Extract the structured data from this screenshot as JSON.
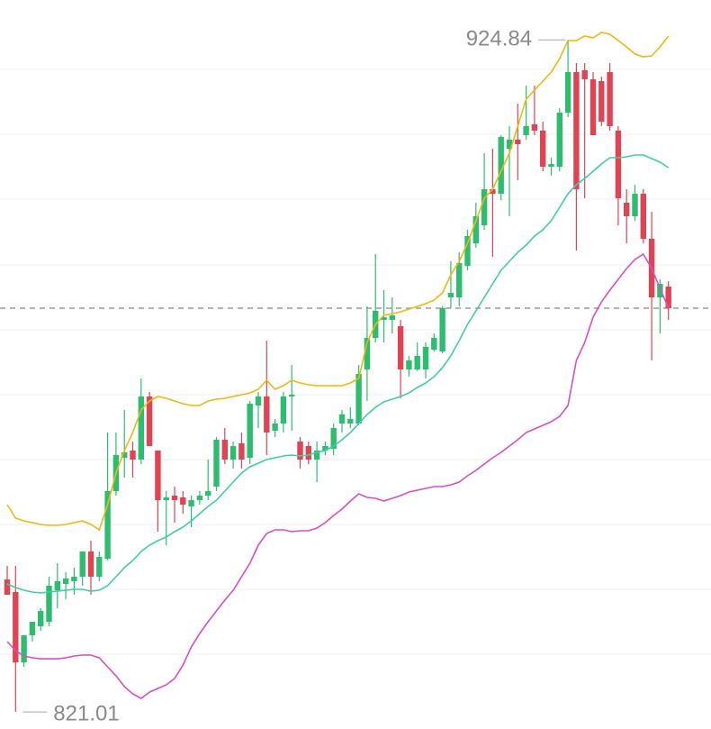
{
  "chart_data": {
    "type": "candlestick",
    "ylim": [
      818.39,
      931
    ],
    "ygrid": [
      920.28,
      910.26,
      900.24,
      890.08,
      880.05,
      870.03,
      860.01,
      849.99,
      839.96,
      829.94
    ],
    "last_price": 883.39,
    "up_color": "#2dbd6e",
    "down_color": "#e04352",
    "high_label": 924.84,
    "low_label": 821.01,
    "ohlc": [
      [
        841.49,
        843.58,
        839.13,
        839.13
      ],
      [
        839.55,
        843.58,
        821.01,
        828.69
      ],
      [
        828.69,
        832.86,
        827.99,
        832.86
      ],
      [
        832.86,
        834.95,
        831.89,
        834.95
      ],
      [
        834.26,
        837.04,
        833.56,
        836.62
      ],
      [
        834.95,
        841.91,
        834.26,
        840.52
      ],
      [
        839.82,
        844.0,
        837.04,
        841.22
      ],
      [
        840.8,
        842.61,
        838.43,
        841.63
      ],
      [
        841.22,
        843.3,
        839.13,
        841.91
      ],
      [
        841.91,
        845.81,
        840.52,
        845.81
      ],
      [
        845.81,
        847.48,
        839.13,
        841.91
      ],
      [
        841.91,
        845.81,
        841.22,
        844.97
      ],
      [
        844.7,
        864.18,
        844.42,
        855.14
      ],
      [
        855.14,
        864.18,
        854.44,
        860.7
      ],
      [
        860.29,
        867.66,
        857.22,
        861.12
      ],
      [
        861.4,
        862.79,
        857.22,
        860.01
      ],
      [
        860.01,
        872.54,
        859.31,
        869.75
      ],
      [
        869.75,
        870.45,
        862.1,
        862.1
      ],
      [
        861.4,
        861.4,
        848.87,
        853.74
      ],
      [
        853.74,
        855.14,
        846.78,
        854.16
      ],
      [
        854.44,
        855.83,
        850.26,
        853.74
      ],
      [
        854.16,
        855.14,
        851.66,
        853.05
      ],
      [
        852.77,
        854.44,
        849.57,
        853.74
      ],
      [
        853.74,
        855.14,
        853.05,
        854.44
      ],
      [
        854.44,
        860.01,
        853.74,
        855.14
      ],
      [
        855.83,
        863.49,
        855.14,
        863.07
      ],
      [
        863.07,
        864.88,
        859.31,
        860.01
      ],
      [
        860.01,
        862.79,
        858.62,
        862.1
      ],
      [
        862.51,
        864.18,
        858.62,
        860.01
      ],
      [
        860.29,
        869.06,
        859.31,
        868.64
      ],
      [
        868.36,
        870.45,
        864.88,
        869.75
      ],
      [
        869.75,
        878.38,
        860.7,
        864.18
      ],
      [
        864.46,
        866.27,
        863.49,
        865.58
      ],
      [
        865.58,
        870.45,
        864.18,
        869.75
      ],
      [
        869.75,
        874.62,
        864.46,
        870.03
      ],
      [
        862.79,
        863.49,
        858.62,
        860.01
      ],
      [
        862.1,
        862.79,
        859.31,
        860.01
      ],
      [
        860.01,
        862.79,
        856.53,
        861.4
      ],
      [
        861.4,
        862.79,
        860.7,
        862.1
      ],
      [
        861.68,
        865.58,
        860.7,
        864.88
      ],
      [
        865.58,
        867.66,
        864.18,
        866.97
      ],
      [
        865.58,
        868.08,
        864.88,
        866.27
      ],
      [
        865.58,
        874.62,
        865.3,
        873.23
      ],
      [
        873.93,
        883.67,
        869.06,
        878.8
      ],
      [
        878.8,
        891.75,
        878.1,
        882.98
      ],
      [
        881.58,
        886.18,
        878.1,
        882.0
      ],
      [
        881.58,
        885.06,
        879.5,
        882.28
      ],
      [
        880.61,
        881.58,
        869.47,
        873.93
      ],
      [
        873.93,
        876.02,
        872.81,
        875.32
      ],
      [
        873.93,
        878.1,
        873.65,
        876.02
      ],
      [
        873.93,
        878.1,
        872.54,
        877.41
      ],
      [
        876.99,
        879.5,
        876.71,
        878.8
      ],
      [
        876.71,
        883.67,
        876.43,
        883.39
      ],
      [
        885.06,
        890.63,
        883.39,
        885.76
      ],
      [
        885.06,
        892.02,
        883.67,
        890.35
      ],
      [
        889.94,
        895.5,
        889.24,
        894.53
      ],
      [
        893.42,
        899.68,
        892.72,
        897.59
      ],
      [
        896.2,
        907.34,
        895.5,
        901.77
      ],
      [
        901.77,
        908.03,
        891.33,
        901.07
      ],
      [
        901.07,
        910.12,
        900.1,
        909.84
      ],
      [
        908.03,
        911.51,
        897.59,
        909.42
      ],
      [
        909.42,
        914.99,
        903.16,
        908.73
      ],
      [
        910.12,
        917.78,
        909.42,
        911.51
      ],
      [
        911.79,
        917.78,
        910.12,
        910.82
      ],
      [
        910.82,
        912.21,
        904.55,
        905.25
      ],
      [
        905.25,
        906.64,
        903.86,
        905.67
      ],
      [
        905.25,
        914.3,
        904.55,
        913.6
      ],
      [
        913.6,
        924.84,
        912.9,
        919.86
      ],
      [
        919.86,
        921.26,
        892.3,
        901.77
      ],
      [
        920.14,
        921.26,
        900.38,
        918.75
      ],
      [
        918.75,
        919.86,
        910.12,
        910.12
      ],
      [
        918.47,
        919.17,
        911.51,
        912.21
      ],
      [
        919.86,
        921.26,
        910.82,
        911.51
      ],
      [
        910.82,
        911.51,
        896.2,
        900.38
      ],
      [
        899.68,
        901.77,
        893.42,
        897.59
      ],
      [
        897.59,
        902.46,
        896.9,
        901.07
      ],
      [
        901.07,
        901.77,
        893.42,
        894.11
      ],
      [
        894.11,
        898.29,
        875.32,
        885.06
      ],
      [
        885.06,
        887.85,
        879.5,
        887.15
      ],
      [
        886.73,
        887.57,
        881.58,
        883.39
      ]
    ],
    "bands": [
      {
        "color": "#f0b80c",
        "values": [
          853.05,
          850.96,
          850.54,
          850.26,
          849.99,
          849.85,
          849.85,
          849.99,
          850.26,
          850.54,
          849.99,
          849.15,
          853.05,
          857.92,
          861.4,
          864.18,
          867.66,
          869.06,
          869.75,
          869.47,
          869.06,
          868.64,
          868.36,
          868.36,
          869.06,
          869.33,
          869.47,
          869.75,
          870.03,
          870.31,
          870.87,
          872.26,
          870.87,
          871.42,
          872.26,
          871.84,
          871.56,
          871.42,
          871.42,
          871.42,
          871.42,
          871.84,
          872.54,
          878.1,
          880.89,
          882.28,
          882.56,
          882.84,
          883.25,
          883.67,
          884.09,
          884.65,
          885.76,
          888.54,
          890.63,
          893.42,
          896.9,
          900.38,
          901.77,
          904.55,
          907.34,
          911.51,
          915.69,
          917.08,
          918.47,
          919.86,
          921.95,
          924.74,
          924.74,
          925.43,
          925.15,
          925.99,
          925.71,
          924.74,
          923.76,
          922.65,
          922.23,
          922.37,
          923.76,
          925.43
        ]
      },
      {
        "color": "#3dcfa6",
        "values": [
          840.8,
          840.24,
          839.82,
          839.55,
          839.41,
          839.55,
          839.68,
          839.82,
          839.96,
          839.96,
          839.68,
          839.82,
          840.52,
          841.91,
          843.3,
          844.42,
          845.81,
          846.78,
          847.48,
          848.04,
          848.87,
          849.57,
          850.54,
          851.66,
          852.77,
          853.74,
          855.14,
          856.53,
          857.92,
          858.89,
          859.45,
          860.01,
          860.29,
          860.56,
          860.7,
          860.56,
          860.7,
          861.12,
          861.4,
          862.1,
          863.07,
          864.18,
          865.58,
          866.97,
          868.08,
          868.92,
          869.33,
          869.75,
          870.31,
          871.14,
          871.84,
          872.81,
          874.21,
          876.02,
          878.38,
          880.89,
          882.98,
          885.06,
          887.15,
          889.24,
          890.63,
          892.02,
          893.14,
          894.53,
          895.5,
          896.9,
          898.98,
          901.07,
          902.46,
          903.44,
          904.55,
          905.67,
          906.64,
          906.64,
          906.78,
          907.06,
          907.06,
          906.5,
          905.94,
          905.11
        ]
      },
      {
        "color": "#d84fc2",
        "values": [
          831.89,
          830.5,
          829.66,
          829.38,
          829.24,
          829.24,
          829.24,
          829.38,
          829.66,
          829.8,
          829.8,
          829.38,
          827.99,
          826.6,
          824.93,
          823.82,
          823.12,
          824.09,
          824.65,
          825.21,
          826.18,
          828.27,
          831.05,
          833.14,
          834.95,
          836.62,
          838.29,
          839.82,
          841.91,
          844.0,
          846.78,
          848.59,
          849.15,
          849.15,
          848.87,
          849.01,
          849.01,
          849.43,
          850.26,
          851.38,
          852.35,
          853.6,
          854.72,
          854.16,
          854.02,
          853.6,
          854.02,
          854.44,
          855.0,
          855.28,
          855.55,
          855.83,
          855.83,
          856.11,
          856.53,
          857.5,
          858.34,
          859.31,
          860.29,
          861.12,
          862.1,
          863.07,
          864.18,
          864.74,
          865.3,
          865.85,
          866.69,
          868.36,
          875.32,
          878.1,
          882.0,
          884.37,
          886.18,
          887.85,
          889.52,
          890.91,
          891.75,
          889.52,
          886.46,
          883.39
        ]
      }
    ]
  }
}
